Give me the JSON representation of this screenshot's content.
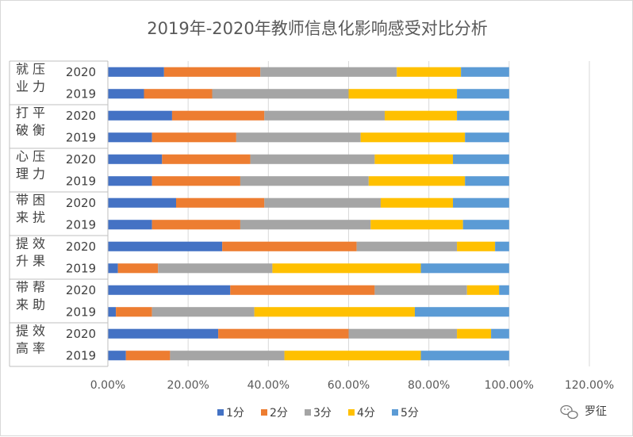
{
  "chart_data": {
    "type": "bar",
    "orientation": "horizontal",
    "stacked": "percent",
    "title": "2019年-2020年教师信息化影响感受对比分析",
    "xlim": [
      0,
      1.2
    ],
    "xticks": [
      "0.00%",
      "20.00%",
      "40.00%",
      "60.00%",
      "80.00%",
      "100.00%",
      "120.00%"
    ],
    "grid": "vertical",
    "legend_position": "bottom",
    "series_names": [
      "1分",
      "2分",
      "3分",
      "4分",
      "5分"
    ],
    "colors": [
      "#4472c4",
      "#ed7d31",
      "#a5a5a5",
      "#ffc000",
      "#5b9bd5"
    ],
    "groups": [
      {
        "label": "就业压力",
        "line1": "就业",
        "line2": "压力",
        "rows": [
          {
            "year": "2020",
            "values": [
              14,
              24,
              34,
              16,
              12
            ]
          },
          {
            "year": "2019",
            "values": [
              9,
              17,
              34,
              27,
              13
            ]
          }
        ]
      },
      {
        "label": "打破平衡",
        "line1": "打破",
        "line2": "平衡",
        "rows": [
          {
            "year": "2020",
            "values": [
              16,
              23,
              30,
              18,
              13
            ]
          },
          {
            "year": "2019",
            "values": [
              11,
              21,
              31,
              26,
              11
            ]
          }
        ]
      },
      {
        "label": "心理压力",
        "line1": "心理",
        "line2": "压力",
        "rows": [
          {
            "year": "2020",
            "values": [
              13.5,
              22,
              31,
              19.5,
              14
            ]
          },
          {
            "year": "2019",
            "values": [
              11,
              22,
              32,
              24,
              11
            ]
          }
        ]
      },
      {
        "label": "带来困扰",
        "line1": "带来",
        "line2": "困扰",
        "rows": [
          {
            "year": "2020",
            "values": [
              17,
              22,
              29,
              18,
              14
            ]
          },
          {
            "year": "2019",
            "values": [
              11,
              22,
              32.5,
              23,
              11.5
            ]
          }
        ]
      },
      {
        "label": "提升效果",
        "line1": "提升",
        "line2": "效果",
        "rows": [
          {
            "year": "2020",
            "values": [
              28.5,
              33.5,
              25,
              9.5,
              3.5
            ]
          },
          {
            "year": "2019",
            "values": [
              2.5,
              10,
              28.5,
              37,
              22
            ]
          }
        ]
      },
      {
        "label": "带来帮助",
        "line1": "带来",
        "line2": "帮助",
        "rows": [
          {
            "year": "2020",
            "values": [
              30.5,
              36,
              23,
              8,
              2.5
            ]
          },
          {
            "year": "2019",
            "values": [
              2,
              9,
              25.5,
              40,
              23.5
            ]
          }
        ]
      },
      {
        "label": "提高效率",
        "line1": "提高",
        "line2": "效率",
        "rows": [
          {
            "year": "2020",
            "values": [
              27.5,
              32.5,
              27,
              8.5,
              4.5
            ]
          },
          {
            "year": "2019",
            "values": [
              4.5,
              11,
              28.5,
              34,
              22
            ]
          }
        ]
      }
    ]
  },
  "watermark": {
    "icon": "wechat-icon",
    "text": "罗征"
  }
}
